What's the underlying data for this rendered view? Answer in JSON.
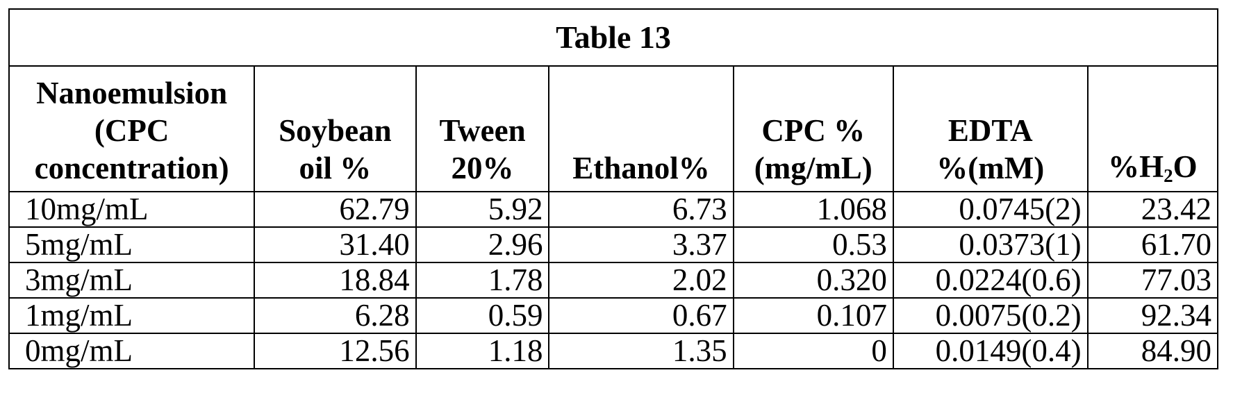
{
  "table": {
    "title": "Table 13",
    "headers": [
      {
        "lines": [
          "Nanoemulsion",
          "(CPC",
          "concentration)"
        ]
      },
      {
        "lines": [
          "Soybean",
          "oil %"
        ]
      },
      {
        "lines": [
          "Tween",
          "20%"
        ]
      },
      {
        "lines": [
          "Ethanol%"
        ]
      },
      {
        "lines": [
          "CPC %",
          "(mg/mL)"
        ]
      },
      {
        "lines": [
          "EDTA",
          "%(mM)"
        ]
      },
      {
        "pre": "%H",
        "sub": "2",
        "post": "O"
      }
    ],
    "rows": [
      [
        "10mg/mL",
        "62.79",
        "5.92",
        "6.73",
        "1.068",
        "0.0745(2)",
        "23.42"
      ],
      [
        "5mg/mL",
        "31.40",
        "2.96",
        "3.37",
        "0.53",
        "0.0373(1)",
        "61.70"
      ],
      [
        "3mg/mL",
        "18.84",
        "1.78",
        "2.02",
        "0.320",
        "0.0224(0.6)",
        "77.03"
      ],
      [
        "1mg/mL",
        "6.28",
        "0.59",
        "0.67",
        "0.107",
        "0.0075(0.2)",
        "92.34"
      ],
      [
        "0mg/mL",
        "12.56",
        "1.18",
        "1.35",
        "0",
        "0.0149(0.4)",
        "84.90"
      ]
    ]
  }
}
